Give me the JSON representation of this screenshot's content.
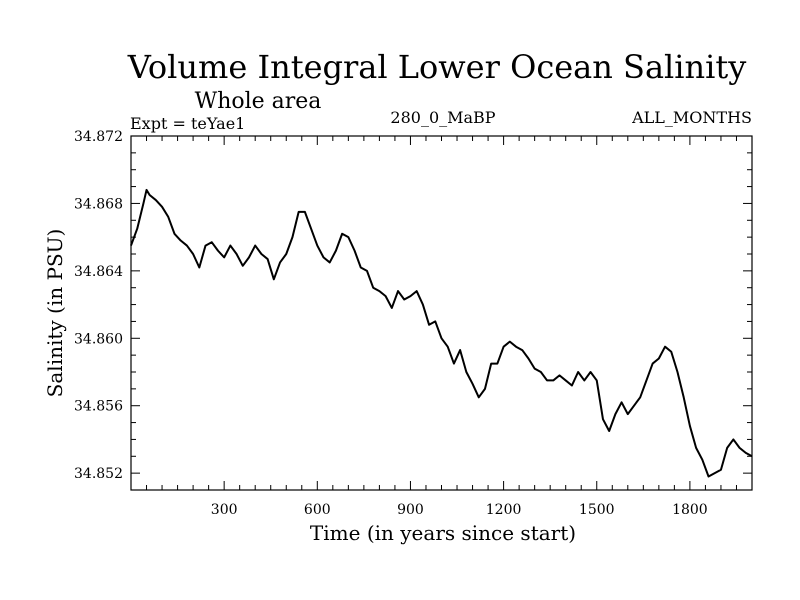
{
  "chart_data": {
    "type": "line",
    "title": "Volume Integral Lower Ocean Salinity",
    "subtitle": "Whole area",
    "header_left": "Expt = teYae1",
    "header_center": "280_0_MaBP",
    "header_right": "ALL_MONTHS",
    "xlabel": "Time (in years since start)",
    "ylabel": "Salinity (in PSU)",
    "xlim": [
      0,
      2000
    ],
    "ylim": [
      34.851,
      34.872
    ],
    "x_ticks": [
      300,
      600,
      900,
      1200,
      1500,
      1800
    ],
    "x_tick_labels": [
      "300",
      "600",
      "900",
      "1200",
      "1500",
      "1800"
    ],
    "y_ticks": [
      34.852,
      34.856,
      34.86,
      34.864,
      34.868,
      34.872
    ],
    "y_tick_labels": [
      "34.852",
      "34.856",
      "34.860",
      "34.864",
      "34.868",
      "34.872"
    ],
    "grid": false,
    "series": [
      {
        "name": "Salinity",
        "x": [
          0,
          20,
          40,
          50,
          60,
          80,
          100,
          120,
          140,
          160,
          180,
          200,
          220,
          240,
          260,
          280,
          300,
          320,
          340,
          360,
          380,
          400,
          420,
          440,
          460,
          480,
          500,
          520,
          540,
          560,
          580,
          600,
          620,
          640,
          660,
          680,
          700,
          720,
          740,
          760,
          780,
          800,
          820,
          840,
          860,
          880,
          900,
          920,
          940,
          960,
          980,
          1000,
          1020,
          1040,
          1060,
          1080,
          1100,
          1120,
          1140,
          1160,
          1180,
          1200,
          1220,
          1240,
          1260,
          1280,
          1300,
          1320,
          1340,
          1360,
          1380,
          1400,
          1420,
          1440,
          1460,
          1480,
          1500,
          1520,
          1540,
          1560,
          1580,
          1600,
          1620,
          1640,
          1660,
          1680,
          1700,
          1720,
          1740,
          1760,
          1780,
          1800,
          1820,
          1840,
          1860,
          1880,
          1900,
          1920,
          1940,
          1960,
          1980,
          2000
        ],
        "values": [
          34.8655,
          34.8665,
          34.868,
          34.8688,
          34.8685,
          34.8682,
          34.8678,
          34.8672,
          34.8662,
          34.8658,
          34.8655,
          34.865,
          34.8642,
          34.8655,
          34.8657,
          34.8652,
          34.8648,
          34.8655,
          34.865,
          34.8643,
          34.8648,
          34.8655,
          34.865,
          34.8647,
          34.8635,
          34.8645,
          34.865,
          34.866,
          34.8675,
          34.8675,
          34.8665,
          34.8655,
          34.8648,
          34.8645,
          34.8652,
          34.8662,
          34.866,
          34.8652,
          34.8642,
          34.864,
          34.863,
          34.8628,
          34.8625,
          34.8618,
          34.8628,
          34.8623,
          34.8625,
          34.8628,
          34.862,
          34.8608,
          34.861,
          34.86,
          34.8595,
          34.8585,
          34.8593,
          34.858,
          34.8573,
          34.8565,
          34.857,
          34.8585,
          34.8585,
          34.8595,
          34.8598,
          34.8595,
          34.8593,
          34.8588,
          34.8582,
          34.858,
          34.8575,
          34.8575,
          34.8578,
          34.8575,
          34.8572,
          34.858,
          34.8575,
          34.858,
          34.8575,
          34.8552,
          34.8545,
          34.8555,
          34.8562,
          34.8555,
          34.856,
          34.8565,
          34.8575,
          34.8585,
          34.8588,
          34.8595,
          34.8592,
          34.858,
          34.8565,
          34.8548,
          34.8535,
          34.8528,
          34.8518,
          34.852,
          34.8522,
          34.8535,
          34.854,
          34.8535,
          34.8532,
          34.853
        ]
      }
    ]
  }
}
